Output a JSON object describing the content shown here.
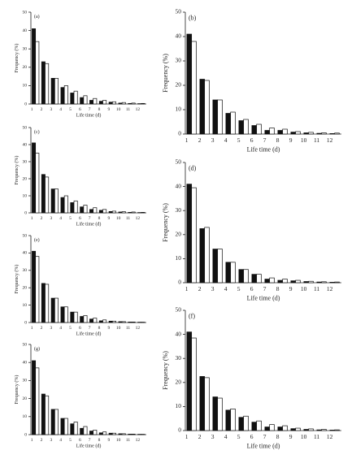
{
  "chart_data": [
    {
      "type": "bar",
      "panel_label": "(a)",
      "xlabel": "Life time (d)",
      "ylabel": "Frequency (%)",
      "categories": [
        "1",
        "2",
        "3",
        "4",
        "5",
        "6",
        "7",
        "8",
        "9",
        "10",
        "11",
        "12"
      ],
      "series": [
        {
          "color": "#111111",
          "values": [
            41,
            23,
            14,
            9,
            6,
            3.5,
            2,
            1.5,
            1,
            0.5,
            0.3,
            0.2
          ]
        },
        {
          "color": "#ffffff",
          "values": [
            34,
            22,
            14,
            10,
            7,
            4.5,
            3,
            2,
            1.2,
            0.8,
            0.5,
            0.3
          ]
        }
      ],
      "ylim": [
        0,
        50
      ],
      "yticks": [
        0,
        10,
        20,
        30,
        40,
        50
      ]
    },
    {
      "type": "bar",
      "panel_label": "(b)",
      "xlabel": "Life time (d)",
      "ylabel": "Frequency (%)",
      "categories": [
        "1",
        "2",
        "3",
        "4",
        "5",
        "6",
        "7",
        "8",
        "9",
        "10",
        "11",
        "12"
      ],
      "series": [
        {
          "color": "#111111",
          "values": [
            41,
            22.5,
            14,
            8.5,
            5.5,
            3.5,
            1.5,
            1.5,
            0.8,
            0.5,
            0.3,
            0.2
          ]
        },
        {
          "color": "#ffffff",
          "values": [
            38,
            22,
            14,
            9,
            6,
            4,
            2.5,
            2,
            1,
            0.7,
            0.5,
            0.4
          ]
        }
      ],
      "ylim": [
        0,
        50
      ],
      "yticks": [
        0,
        10,
        20,
        30,
        40,
        50
      ]
    },
    {
      "type": "bar",
      "panel_label": "(c)",
      "xlabel": "Life time (d)",
      "ylabel": "Frequency (%)",
      "categories": [
        "1",
        "2",
        "3",
        "4",
        "5",
        "6",
        "7",
        "8",
        "9",
        "10",
        "11",
        "12"
      ],
      "series": [
        {
          "color": "#111111",
          "values": [
            41,
            22.5,
            14,
            9,
            6,
            3.5,
            2,
            1.5,
            0.8,
            0.5,
            0.3,
            0.2
          ]
        },
        {
          "color": "#ffffff",
          "values": [
            35,
            21,
            14,
            10,
            7,
            4.5,
            3,
            2,
            1,
            0.7,
            0.5,
            0.3
          ]
        }
      ],
      "ylim": [
        0,
        50
      ],
      "yticks": [
        0,
        10,
        20,
        30,
        40,
        50
      ]
    },
    {
      "type": "bar",
      "panel_label": "(d)",
      "xlabel": "Life time (d)",
      "ylabel": "Frequency (%)",
      "categories": [
        "1",
        "2",
        "3",
        "4",
        "5",
        "6",
        "7",
        "8",
        "9",
        "10",
        "11",
        "12"
      ],
      "series": [
        {
          "color": "#111111",
          "values": [
            41,
            22.5,
            14,
            8.5,
            5.5,
            3.5,
            1.5,
            1,
            0.8,
            0.5,
            0.3,
            0.2
          ]
        },
        {
          "color": "#ffffff",
          "values": [
            39.5,
            23,
            14,
            8.5,
            5.5,
            3.5,
            2,
            1.5,
            1,
            0.6,
            0.4,
            0.3
          ]
        }
      ],
      "ylim": [
        0,
        50
      ],
      "yticks": [
        0,
        10,
        20,
        30,
        40,
        50
      ]
    },
    {
      "type": "bar",
      "panel_label": "(e)",
      "xlabel": "Life time (d)",
      "ylabel": "Frequency (%)",
      "categories": [
        "1",
        "2",
        "3",
        "4",
        "5",
        "6",
        "7",
        "8",
        "9",
        "10",
        "11",
        "12"
      ],
      "series": [
        {
          "color": "#111111",
          "values": [
            41,
            22.5,
            14,
            9,
            6,
            3.5,
            2,
            1,
            0.8,
            0.5,
            0.3,
            0.2
          ]
        },
        {
          "color": "#ffffff",
          "values": [
            38,
            22,
            14,
            9,
            6,
            4,
            2.5,
            1.5,
            0.8,
            0.5,
            0.3,
            0.2
          ]
        }
      ],
      "ylim": [
        0,
        50
      ],
      "yticks": [
        0,
        10,
        20,
        30,
        40,
        50
      ]
    },
    {
      "type": "bar",
      "panel_label": "(f)",
      "xlabel": "Life time (d)",
      "ylabel": "Frequency (%)",
      "categories": [
        "1",
        "2",
        "3",
        "4",
        "5",
        "6",
        "7",
        "8",
        "9",
        "10",
        "11",
        "12"
      ],
      "series": [
        {
          "color": "#111111",
          "values": [
            41,
            22.5,
            14,
            8.5,
            5.5,
            3.5,
            1.5,
            1.5,
            0.8,
            0.5,
            0.3,
            0.2
          ]
        },
        {
          "color": "#ffffff",
          "values": [
            38.5,
            22,
            13.5,
            9,
            6,
            4,
            2.5,
            2,
            1,
            0.7,
            0.5,
            0.3
          ]
        }
      ],
      "ylim": [
        0,
        50
      ],
      "yticks": [
        0,
        10,
        20,
        30,
        40,
        50
      ]
    },
    {
      "type": "bar",
      "panel_label": "(g)",
      "xlabel": "Life time (d)",
      "ylabel": "Frequency (%)",
      "categories": [
        "1",
        "2",
        "3",
        "4",
        "5",
        "6",
        "7",
        "8",
        "9",
        "10",
        "11",
        "12"
      ],
      "series": [
        {
          "color": "#111111",
          "values": [
            41,
            22.5,
            14,
            9,
            6,
            3.5,
            2,
            1,
            0.8,
            0.5,
            0.3,
            0.2
          ]
        },
        {
          "color": "#ffffff",
          "values": [
            37,
            21.5,
            14,
            9,
            7,
            4.5,
            2.5,
            1.5,
            0.8,
            0.5,
            0.3,
            0.2
          ]
        }
      ],
      "ylim": [
        0,
        50
      ],
      "yticks": [
        0,
        10,
        20,
        30,
        40,
        50
      ]
    }
  ]
}
